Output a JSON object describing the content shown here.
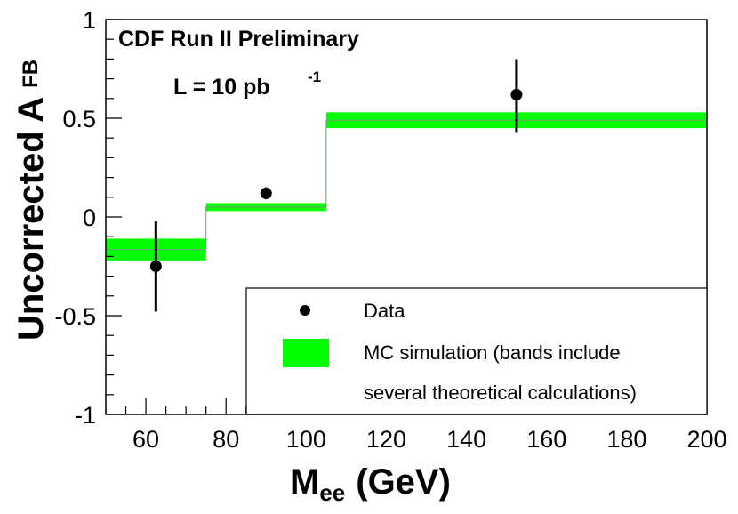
{
  "chart_data": {
    "type": "scatter",
    "title": "",
    "annotations": {
      "experiment": "CDF Run II Preliminary",
      "luminosity_prefix": "L = 10 pb",
      "luminosity_exp": "-1"
    },
    "xlabel": {
      "main": "M",
      "sub": "ee",
      "rest": "(GeV)"
    },
    "ylabel": {
      "main": "Uncorrected A",
      "sub": "FB"
    },
    "xlim": [
      50,
      200
    ],
    "ylim": [
      -1,
      1
    ],
    "x_ticks": [
      60,
      80,
      100,
      120,
      140,
      160,
      180,
      200
    ],
    "y_ticks": [
      -1,
      -0.5,
      0,
      0.5,
      1
    ],
    "y_tick_labels": [
      "-1",
      "-0.5",
      "0",
      "0.5",
      "1"
    ],
    "series": [
      {
        "name": "Data",
        "kind": "points_with_errors",
        "points": [
          {
            "x": 62.5,
            "y": -0.25,
            "err_low": 0.23,
            "err_high": 0.23
          },
          {
            "x": 90,
            "y": 0.12,
            "err_low": 0.03,
            "err_high": 0.03
          },
          {
            "x": 152.5,
            "y": 0.62,
            "err_low": 0.19,
            "err_high": 0.18
          }
        ]
      },
      {
        "name": "MC simulation (bands include several theoretical calculations)",
        "kind": "bands",
        "color": "#00ff00",
        "bins": [
          {
            "x_low": 50,
            "x_high": 75,
            "y_low": -0.22,
            "y_high": -0.11
          },
          {
            "x_low": 75,
            "x_high": 105,
            "y_low": 0.03,
            "y_high": 0.07
          },
          {
            "x_low": 105,
            "x_high": 200,
            "y_low": 0.45,
            "y_high": 0.53
          }
        ]
      }
    ],
    "legend": {
      "placement": "bottom-right",
      "entries": [
        {
          "label": "Data",
          "marker": "point"
        },
        {
          "label": "MC simulation (bands include",
          "label2": "several theoretical calculations)",
          "marker": "band"
        }
      ]
    }
  }
}
